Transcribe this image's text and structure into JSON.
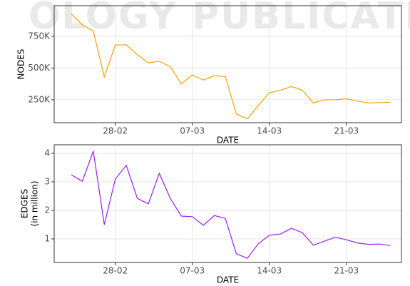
{
  "watermark": "OLOGY PUBLICATIONS",
  "chart_data": [
    {
      "type": "line",
      "xlabel": "DATE",
      "ylabel_lines": [
        "NODES"
      ],
      "categories": [
        "24-02",
        "25-02",
        "26-02",
        "27-02",
        "28-02",
        "01-03",
        "02-03",
        "03-03",
        "04-03",
        "05-03",
        "06-03",
        "07-03",
        "08-03",
        "09-03",
        "10-03",
        "11-03",
        "12-03",
        "13-03",
        "14-03",
        "15-03",
        "16-03",
        "17-03",
        "18-03",
        "19-03",
        "20-03",
        "21-03",
        "22-03",
        "23-03",
        "24-03",
        "25-03"
      ],
      "xticks": [
        "28-02",
        "07-03",
        "14-03",
        "21-03"
      ],
      "series": [
        {
          "name": "NODES",
          "color": "#f5a300",
          "values": [
            925000,
            840000,
            790000,
            430000,
            680000,
            682000,
            605000,
            540000,
            553000,
            510000,
            375000,
            445000,
            405000,
            440000,
            432000,
            140000,
            100000,
            205000,
            305000,
            325000,
            355000,
            325000,
            225000,
            250000,
            250000,
            258000,
            240000,
            225000,
            228000,
            230000
          ]
        }
      ],
      "ylim": [
        70000,
        990000
      ],
      "yticks": [
        {
          "value": 250000,
          "label": "250K"
        },
        {
          "value": 500000,
          "label": "500K"
        },
        {
          "value": 750000,
          "label": "750K"
        }
      ],
      "grid": true
    },
    {
      "type": "line",
      "xlabel": "DATE",
      "ylabel_lines": [
        "EDGES",
        "(in million)"
      ],
      "categories": [
        "24-02",
        "25-02",
        "26-02",
        "27-02",
        "28-02",
        "01-03",
        "02-03",
        "03-03",
        "04-03",
        "05-03",
        "06-03",
        "07-03",
        "08-03",
        "09-03",
        "10-03",
        "11-03",
        "12-03",
        "13-03",
        "14-03",
        "15-03",
        "16-03",
        "17-03",
        "18-03",
        "19-03",
        "20-03",
        "21-03",
        "22-03",
        "23-03",
        "24-03",
        "25-03"
      ],
      "xticks": [
        "28-02",
        "07-03",
        "14-03",
        "21-03"
      ],
      "series": [
        {
          "name": "EDGES",
          "color": "#9b1cf5",
          "values": [
            3.25,
            3.02,
            4.08,
            1.5,
            3.1,
            3.58,
            2.42,
            2.23,
            3.3,
            2.42,
            1.8,
            1.78,
            1.48,
            1.82,
            1.72,
            0.48,
            0.32,
            0.83,
            1.13,
            1.17,
            1.37,
            1.22,
            0.78,
            0.92,
            1.06,
            0.97,
            0.86,
            0.81,
            0.82,
            0.77
          ]
        }
      ],
      "ylim": [
        0.175,
        4.3
      ],
      "yticks": [
        1,
        2,
        3,
        4
      ],
      "grid": true
    }
  ]
}
